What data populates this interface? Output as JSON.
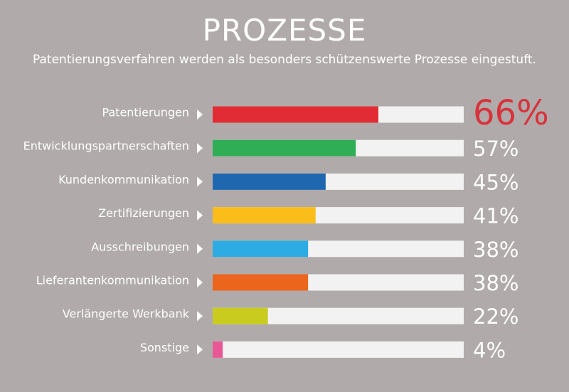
{
  "chart_data": {
    "type": "bar",
    "title": "PROZESSE",
    "subtitle": "Patentierungsverfahren werden als besonders schützenswerte Prozesse eingestuft.",
    "categories": [
      "Patentierungen",
      "Entwicklungspartnerschaften",
      "Kundenkommunikation",
      "Zertifizierungen",
      "Ausschreibungen",
      "Lieferantenkommunikation",
      "Verlängerte Werkbank",
      "Sonstige"
    ],
    "values": [
      66,
      57,
      45,
      41,
      38,
      38,
      22,
      4
    ],
    "value_labels": [
      "66%",
      "57%",
      "45%",
      "41%",
      "38%",
      "38%",
      "22%",
      "4%"
    ],
    "colors": [
      "#e22c35",
      "#2fae56",
      "#1f68b0",
      "#fbbd19",
      "#2cace2",
      "#ec651d",
      "#c9cc1f",
      "#e95896"
    ],
    "track_color": "#f2f2f2",
    "highlight_color": "#d8333c",
    "ylim": [
      0,
      100
    ],
    "orientation": "horizontal",
    "grid": false,
    "legend": "none"
  }
}
